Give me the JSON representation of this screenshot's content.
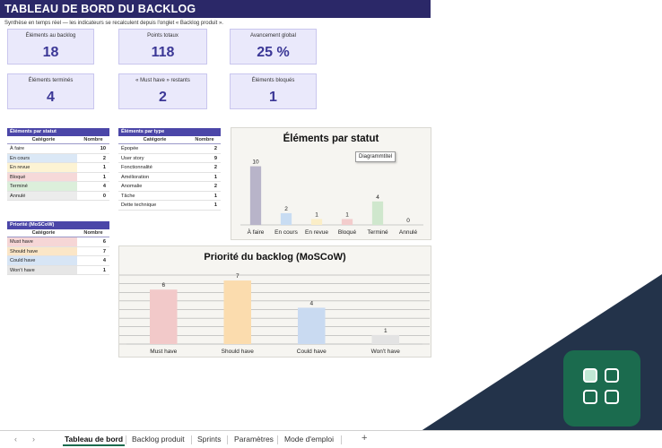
{
  "header": {
    "title": "TABLEAU DE BORD DU BACKLOG",
    "subtitle": "Synthèse en temps réel — les indicateurs se recalculent depuis l'onglet « Backlog produit »."
  },
  "kpis": [
    {
      "label": "Éléments au backlog",
      "value": "18"
    },
    {
      "label": "Points totaux",
      "value": "118"
    },
    {
      "label": "Avancement global",
      "value": "25 %"
    },
    {
      "label": "Éléments terminés",
      "value": "4"
    },
    {
      "label": "« Must have » restants",
      "value": "2"
    },
    {
      "label": "Éléments bloqués",
      "value": "1"
    }
  ],
  "table_statut": {
    "title": "Éléments par statut",
    "col1": "Catégorie",
    "col2": "Nombre",
    "rows": [
      {
        "cat": "À faire",
        "n": "10",
        "color": "#ffffff"
      },
      {
        "cat": "En cours",
        "n": "2",
        "color": "#dbe8f6"
      },
      {
        "cat": "En revue",
        "n": "1",
        "color": "#fdf3d3"
      },
      {
        "cat": "Bloqué",
        "n": "1",
        "color": "#f6d9d9"
      },
      {
        "cat": "Terminé",
        "n": "4",
        "color": "#dcefdb"
      },
      {
        "cat": "Annulé",
        "n": "0",
        "color": "#ececec"
      }
    ]
  },
  "table_type": {
    "title": "Éléments par type",
    "col1": "Catégorie",
    "col2": "Nombre",
    "rows": [
      {
        "cat": "Épopée",
        "n": "2"
      },
      {
        "cat": "User story",
        "n": "9"
      },
      {
        "cat": "Fonctionnalité",
        "n": "2"
      },
      {
        "cat": "Amélioration",
        "n": "1"
      },
      {
        "cat": "Anomalie",
        "n": "2"
      },
      {
        "cat": "Tâche",
        "n": "1"
      },
      {
        "cat": "Dette technique",
        "n": "1"
      }
    ]
  },
  "table_moscow": {
    "title": "Priorité (MoSCoW)",
    "col1": "Catégorie",
    "col2": "Nombre",
    "rows": [
      {
        "cat": "Must have",
        "n": "6",
        "color": "#f6d6d6"
      },
      {
        "cat": "Should have",
        "n": "7",
        "color": "#fbe6c7"
      },
      {
        "cat": "Could have",
        "n": "4",
        "color": "#d7e5f5"
      },
      {
        "cat": "Won't have",
        "n": "1",
        "color": "#e6e6e6"
      }
    ]
  },
  "tooltip": {
    "text": "Diagrammtitel"
  },
  "chart_data": [
    {
      "type": "bar",
      "title": "Éléments par statut",
      "categories": [
        "À faire",
        "En cours",
        "En revue",
        "Bloqué",
        "Terminé",
        "Annulé"
      ],
      "values": [
        10,
        2,
        1,
        1,
        4,
        0
      ],
      "colors": [
        "#b8b4c9",
        "#c8dcf2",
        "#fbeec7",
        "#f3cccc",
        "#cfe7cd",
        "#e6e6e6"
      ],
      "ylim": [
        0,
        11
      ],
      "grid": false
    },
    {
      "type": "bar",
      "title": "Priorité du backlog (MoSCoW)",
      "categories": [
        "Must have",
        "Should have",
        "Could have",
        "Won't have"
      ],
      "values": [
        6,
        7,
        4,
        1
      ],
      "colors": [
        "#f2c9c9",
        "#fbdcae",
        "#c9daf1",
        "#e3e3e3"
      ],
      "ylim": [
        0,
        7.6
      ],
      "grid": true
    }
  ],
  "tabs": {
    "items": [
      "Tableau de bord",
      "Backlog produit",
      "Sprints",
      "Paramètres",
      "Mode d'emploi"
    ],
    "active": 0,
    "plus": "+",
    "prev": "‹",
    "next": "›"
  }
}
